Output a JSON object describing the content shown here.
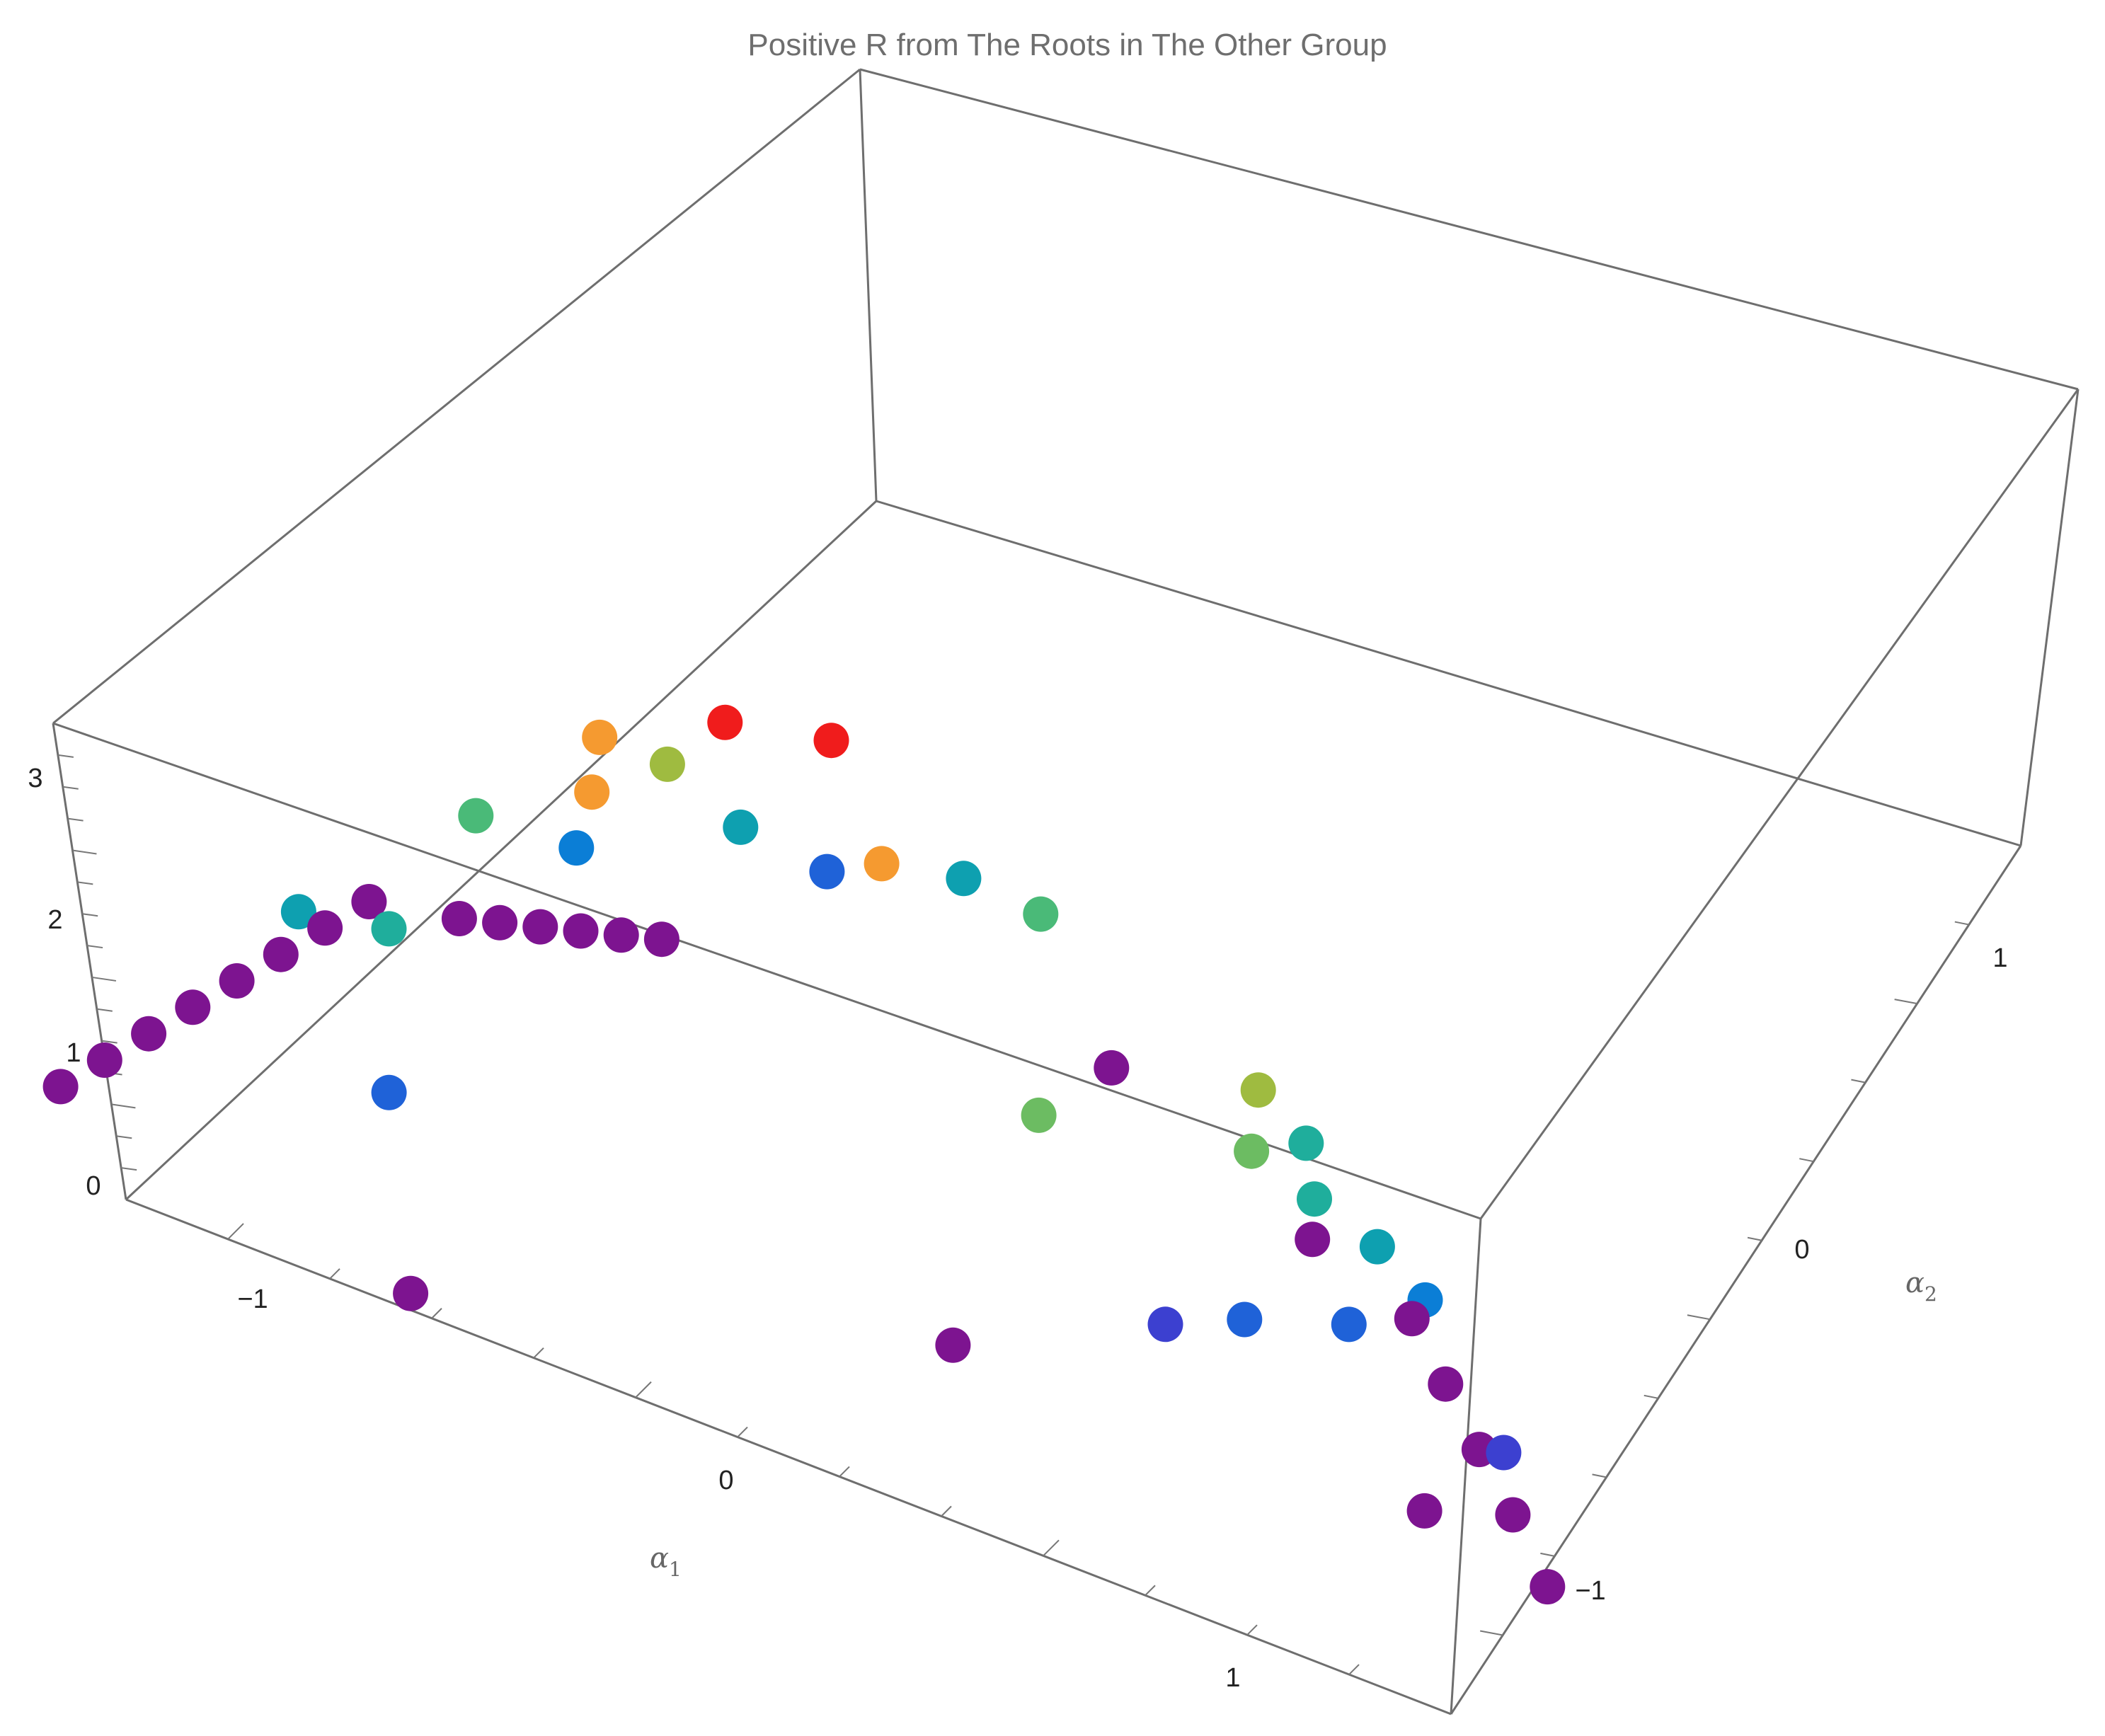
{
  "chart_data": {
    "type": "scatter",
    "title": "Positive R from The Roots in The Other Group",
    "xlabel": "α1",
    "ylabel": "α2",
    "zlabel": "",
    "xlim": [
      -1.45,
      1.45
    ],
    "ylim": [
      -1.45,
      1.45
    ],
    "zlim": [
      0,
      3.5
    ],
    "x_ticks": [
      "−1",
      "0",
      "1"
    ],
    "y_ticks": [
      "−1",
      "0",
      "1"
    ],
    "z_ticks": [
      "0",
      "1",
      "2",
      "3"
    ],
    "color_scale": "rainbow by R (purple = low, red = high)",
    "colors": {
      "purple": "#7d1490",
      "indigo": "#3c40d0",
      "blue": "#1f62d8",
      "skyblue": "#0b7ed6",
      "cyan": "#0ea0b0",
      "teal": "#1fae9c",
      "green": "#4aba78",
      "lightgreen": "#6cbc62",
      "olive": "#9fbb40",
      "orange": "#f59a30",
      "red": "#f01c1c"
    },
    "points": [
      {
        "x": -1.4,
        "y": 0,
        "z": 0.8,
        "color": "purple"
      },
      {
        "x": -1.3,
        "y": 0,
        "z": 1.15,
        "color": "purple"
      },
      {
        "x": -1.2,
        "y": 0,
        "z": 1.5,
        "color": "purple"
      },
      {
        "x": -1.1,
        "y": 0,
        "z": 1.85,
        "color": "purple"
      },
      {
        "x": -1.0,
        "y": 0,
        "z": 2.2,
        "color": "purple"
      },
      {
        "x": -0.9,
        "y": 0,
        "z": 2.55,
        "color": "purple"
      },
      {
        "x": -0.8,
        "y": 0,
        "z": 2.9,
        "color": "purple"
      },
      {
        "x": -0.7,
        "y": 0,
        "z": 3.25,
        "color": "purple"
      },
      {
        "x": -0.5,
        "y": 0.05,
        "z": 3.3,
        "color": "purple"
      },
      {
        "x": -0.4,
        "y": 0.1,
        "z": 3.3,
        "color": "purple"
      },
      {
        "x": -0.3,
        "y": 0.15,
        "z": 3.3,
        "color": "purple"
      },
      {
        "x": -0.2,
        "y": 0.2,
        "z": 3.3,
        "color": "purple"
      },
      {
        "x": -0.1,
        "y": 0.25,
        "z": 3.3,
        "color": "purple"
      },
      {
        "x": 0.0,
        "y": 0.3,
        "z": 3.3,
        "color": "purple"
      },
      {
        "x": -0.85,
        "y": -0.35,
        "z": 0.85,
        "color": "purple"
      },
      {
        "x": 0.35,
        "y": -0.1,
        "z": 1.65,
        "color": "purple"
      },
      {
        "x": -0.75,
        "y": -0.1,
        "z": 1.95,
        "color": "blue"
      },
      {
        "x": -0.85,
        "y": 0.0,
        "z": 2.95,
        "color": "cyan"
      },
      {
        "x": -0.65,
        "y": 0.05,
        "z": 3.0,
        "color": "teal"
      },
      {
        "x": -0.3,
        "y": 0.45,
        "z": 3.45,
        "color": "green"
      },
      {
        "x": -0.1,
        "y": 0.45,
        "z": 3.5,
        "color": "skyblue"
      },
      {
        "x": 0.05,
        "y": 0.75,
        "z": 3.45,
        "color": "orange"
      },
      {
        "x": 0.15,
        "y": 0.95,
        "z": 3.55,
        "color": "orange"
      },
      {
        "x": 0.3,
        "y": 1.0,
        "z": 3.45,
        "color": "olive"
      },
      {
        "x": 0.4,
        "y": 0.9,
        "z": 3.35,
        "color": "cyan"
      },
      {
        "x": 0.55,
        "y": 0.85,
        "z": 3.35,
        "color": "blue"
      },
      {
        "x": 0.7,
        "y": 0.95,
        "z": 3.4,
        "color": "orange"
      },
      {
        "x": 0.5,
        "y": 1.2,
        "z": 3.6,
        "color": "red"
      },
      {
        "x": 0.75,
        "y": 1.3,
        "z": 3.6,
        "color": "red"
      },
      {
        "x": 0.9,
        "y": 1.05,
        "z": 3.35,
        "color": "cyan"
      },
      {
        "x": 1.05,
        "y": 1.05,
        "z": 3.3,
        "color": "green"
      },
      {
        "x": 0.75,
        "y": 0.35,
        "z": 2.95,
        "color": "lightgreen"
      },
      {
        "x": 1.0,
        "y": 0.6,
        "z": 3.1,
        "color": "purple"
      },
      {
        "x": 1.25,
        "y": 0.55,
        "z": 2.95,
        "color": "lightgreen"
      },
      {
        "x": 1.35,
        "y": 0.75,
        "z": 3.1,
        "color": "olive"
      },
      {
        "x": 1.4,
        "y": 0.65,
        "z": 3.0,
        "color": "teal"
      },
      {
        "x": 1.35,
        "y": 0.5,
        "z": 2.85,
        "color": "teal"
      },
      {
        "x": 1.45,
        "y": 0.45,
        "z": 2.75,
        "color": "cyan"
      },
      {
        "x": 1.3,
        "y": 0.4,
        "z": 2.7,
        "color": "purple"
      },
      {
        "x": 1.45,
        "y": 0.3,
        "z": 2.55,
        "color": "purple"
      },
      {
        "x": 1.45,
        "y": 0.15,
        "z": 2.4,
        "color": "purple"
      },
      {
        "x": 1.45,
        "y": 0.0,
        "z": 2.25,
        "color": "purple"
      },
      {
        "x": 1.45,
        "y": -0.15,
        "z": 2.1,
        "color": "purple"
      },
      {
        "x": 1.5,
        "y": 0.35,
        "z": 2.65,
        "color": "skyblue"
      },
      {
        "x": 1.3,
        "y": 0.25,
        "z": 2.4,
        "color": "blue"
      },
      {
        "x": 1.05,
        "y": 0.15,
        "z": 2.3,
        "color": "blue"
      },
      {
        "x": 0.85,
        "y": 0.05,
        "z": 2.2,
        "color": "indigo"
      },
      {
        "x": 1.5,
        "y": 0.0,
        "z": 2.3,
        "color": "indigo"
      },
      {
        "x": 1.25,
        "y": -0.2,
        "z": 1.95,
        "color": "purple"
      },
      {
        "x": 1.45,
        "y": -0.3,
        "z": 1.9,
        "color": "purple"
      }
    ]
  }
}
